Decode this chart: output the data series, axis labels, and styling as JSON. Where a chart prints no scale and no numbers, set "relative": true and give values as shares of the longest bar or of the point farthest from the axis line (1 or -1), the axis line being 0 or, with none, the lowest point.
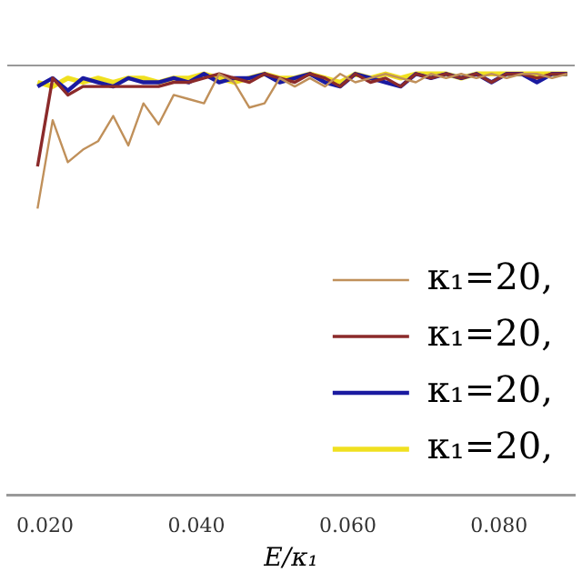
{
  "chart_data": {
    "type": "line",
    "xlabel": "E/κ₁",
    "relative": true,
    "legend": "bottom right",
    "grid": false,
    "marker": "none",
    "x": [
      0.019,
      0.021,
      0.023,
      0.025,
      0.027,
      0.029,
      0.031,
      0.033,
      0.035,
      0.037,
      0.039,
      0.041,
      0.043,
      0.045,
      0.047,
      0.049,
      0.051,
      0.053,
      0.055,
      0.057,
      0.059,
      0.061,
      0.063,
      0.065,
      0.067,
      0.069,
      0.071,
      0.073,
      0.075,
      0.077,
      0.079,
      0.081,
      0.083,
      0.085,
      0.087,
      0.089
    ],
    "xlim": [
      0.015,
      0.09
    ],
    "xticks": [
      {
        "value": 0.02,
        "label": "0.020"
      },
      {
        "value": 0.04,
        "label": "0.040"
      },
      {
        "value": 0.06,
        "label": "0.060"
      },
      {
        "value": 0.08,
        "label": "0.080"
      }
    ],
    "series": [
      {
        "name": "κ₁=20,",
        "color": "#c0905a",
        "values": [
          0.68,
          0.89,
          0.79,
          0.82,
          0.84,
          0.9,
          0.83,
          0.93,
          0.88,
          0.95,
          0.94,
          0.93,
          1.0,
          0.98,
          0.92,
          0.93,
          0.99,
          0.97,
          0.99,
          0.97,
          1.0,
          0.98,
          0.99,
          1.0,
          0.99,
          0.98,
          1.0,
          0.99,
          1.0,
          0.99,
          1.0,
          0.99,
          1.0,
          1.0,
          0.99,
          1.0
        ]
      },
      {
        "name": "κ₁=20,",
        "color": "#8b2a2a",
        "values": [
          0.78,
          0.99,
          0.95,
          0.97,
          0.97,
          0.97,
          0.97,
          0.97,
          0.97,
          0.98,
          0.98,
          0.99,
          1.0,
          0.99,
          0.98,
          1.0,
          0.99,
          0.98,
          1.0,
          0.99,
          0.97,
          1.0,
          0.98,
          0.99,
          0.97,
          1.0,
          0.99,
          1.0,
          0.99,
          1.0,
          0.98,
          1.0,
          1.0,
          0.99,
          1.0,
          1.0
        ]
      },
      {
        "name": "κ₁=20,",
        "color": "#1a1aa0",
        "values": [
          0.97,
          0.99,
          0.96,
          0.99,
          0.98,
          0.97,
          0.99,
          0.98,
          0.98,
          0.99,
          0.98,
          1.0,
          0.98,
          0.99,
          0.99,
          1.0,
          0.98,
          0.99,
          1.0,
          0.98,
          0.97,
          1.0,
          0.99,
          0.98,
          0.97,
          1.0,
          0.99,
          1.0,
          0.99,
          1.0,
          0.98,
          1.0,
          1.0,
          0.98,
          1.0,
          1.0
        ]
      },
      {
        "name": "κ₁=20,",
        "color": "#f0e020",
        "values": [
          0.98,
          0.97,
          0.99,
          0.98,
          0.99,
          0.98,
          0.99,
          0.99,
          0.98,
          0.99,
          0.99,
          1.0,
          0.99,
          0.98,
          0.99,
          1.0,
          0.99,
          0.99,
          1.0,
          0.99,
          0.98,
          1.0,
          0.99,
          1.0,
          0.99,
          1.0,
          1.0,
          1.0,
          0.99,
          1.0,
          1.0,
          1.0,
          1.0,
          1.0,
          1.0,
          1.0
        ]
      }
    ]
  }
}
